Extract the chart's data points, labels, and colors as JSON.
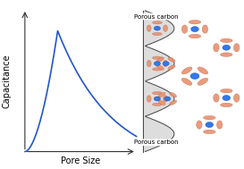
{
  "bg_color": "#ffffff",
  "curve_color": "#2255cc",
  "curve_linewidth": 1.2,
  "xlabel": "Pore Size",
  "ylabel": "Capacitance",
  "xlabel_fontsize": 7,
  "ylabel_fontsize": 7,
  "porous_carbon_label": "Porous carbon",
  "porous_carbon_fontsize": 5.0,
  "zigzag_fill_color": "#cccccc",
  "zigzag_edge_color": "#444444",
  "zigzag_linewidth": 0.7,
  "ion_center_color": "#3377ee",
  "ion_shell_color": "#e89070",
  "axis_color": "#333333",
  "figsize": [
    2.73,
    1.89
  ],
  "dpi": 100
}
